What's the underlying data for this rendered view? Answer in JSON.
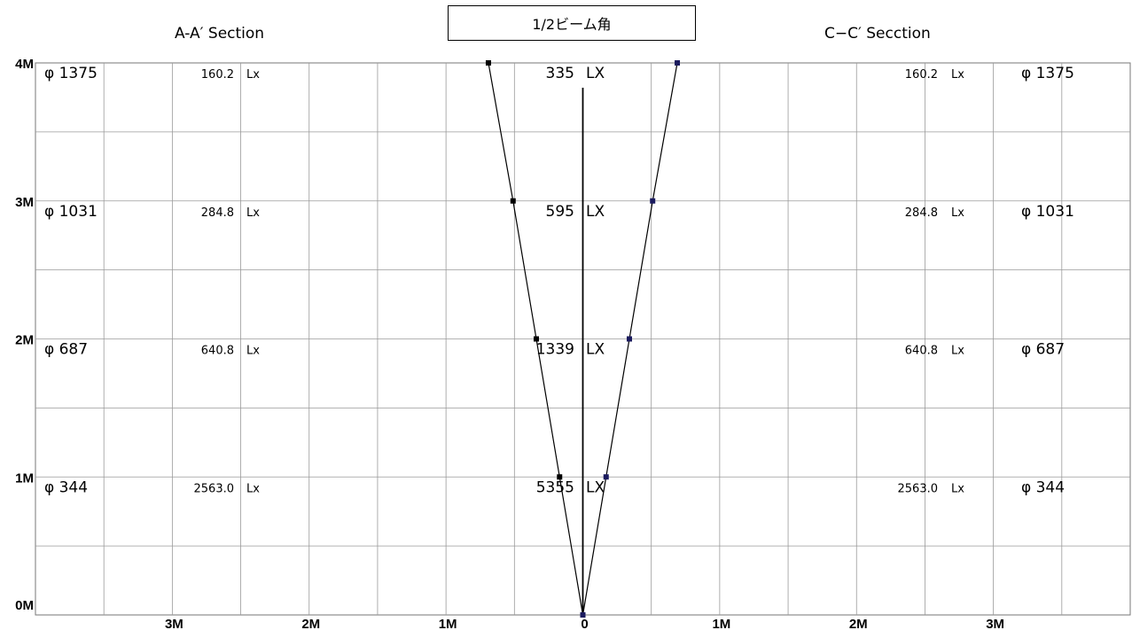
{
  "header": {
    "title": "1/2ビーム角",
    "section_a": "A-A′ Section",
    "section_c": "C−C′ Secction"
  },
  "chart_data": {
    "type": "line",
    "title": "1/2ビーム角",
    "y_ticks": [
      {
        "value": 0,
        "label": "0M"
      },
      {
        "value": 1,
        "label": "1M"
      },
      {
        "value": 2,
        "label": "2M"
      },
      {
        "value": 3,
        "label": "3M"
      },
      {
        "value": 4,
        "label": "4M"
      }
    ],
    "x_ticks": [
      {
        "value": -3,
        "label": "3M"
      },
      {
        "value": -2,
        "label": "2M"
      },
      {
        "value": -1,
        "label": "1M"
      },
      {
        "value": 0,
        "label": "0"
      },
      {
        "value": 1,
        "label": "1M"
      },
      {
        "value": 2,
        "label": "2M"
      },
      {
        "value": 3,
        "label": "3M"
      }
    ],
    "xlim": [
      -4,
      4
    ],
    "ylim": [
      0,
      4
    ],
    "grid": true,
    "rows": [
      {
        "height": 4,
        "diameter": "φ 1375",
        "section_lux": "160.2",
        "section_unit": "Lx",
        "center_lux": "335",
        "center_unit": "LX"
      },
      {
        "height": 3,
        "diameter": "φ 1031",
        "section_lux": "284.8",
        "section_unit": "Lx",
        "center_lux": "595",
        "center_unit": "LX"
      },
      {
        "height": 2,
        "diameter": "φ 687",
        "section_lux": "640.8",
        "section_unit": "Lx",
        "center_lux": "1339",
        "center_unit": "LX"
      },
      {
        "height": 1,
        "diameter": "φ 344",
        "section_lux": "2563.0",
        "section_unit": "Lx",
        "center_lux": "5355",
        "center_unit": "LX"
      }
    ],
    "series": [
      {
        "color": "#000000",
        "points": [
          [
            0,
            0
          ],
          [
            -0.17,
            1
          ],
          [
            -0.34,
            2
          ],
          [
            -0.51,
            3
          ],
          [
            -0.69,
            4
          ]
        ]
      },
      {
        "color": "#1a1a5e",
        "points": [
          [
            0,
            0
          ],
          [
            0.17,
            1
          ],
          [
            0.34,
            2
          ],
          [
            0.51,
            3
          ],
          [
            0.69,
            4
          ]
        ]
      }
    ]
  }
}
